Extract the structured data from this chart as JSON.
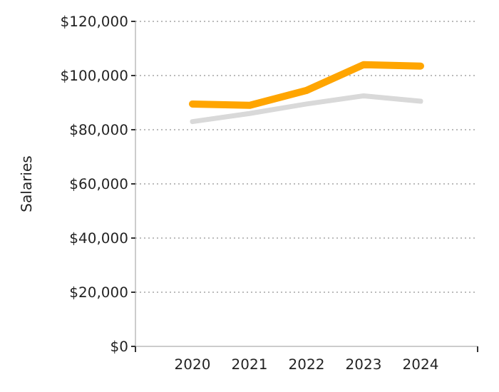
{
  "chart_data": {
    "type": "line",
    "ylabel": "Salaries",
    "x": [
      2020,
      2021,
      2022,
      2023,
      2024
    ],
    "series": [
      {
        "color": "#d9d9d9",
        "values": [
          83000,
          86000,
          89500,
          92500,
          90500
        ]
      },
      {
        "color": "#ffa500",
        "values": [
          89500,
          89000,
          94500,
          104000,
          103500
        ]
      }
    ],
    "xlim": [
      2019,
      2025
    ],
    "xticks": [
      2020,
      2021,
      2022,
      2023,
      2024
    ],
    "ylim": [
      0,
      120000
    ],
    "yticks": [
      {
        "value": 0,
        "label": "$0"
      },
      {
        "value": 20000,
        "label": "$20,000"
      },
      {
        "value": 40000,
        "label": "$40,000"
      },
      {
        "value": 60000,
        "label": "$60,000"
      },
      {
        "value": 80000,
        "label": "$80,000"
      },
      {
        "value": 100000,
        "label": "$100,000"
      },
      {
        "value": 120000,
        "label": "$120,000"
      }
    ],
    "grid": "y",
    "marker": "none",
    "line_style": "solid"
  }
}
